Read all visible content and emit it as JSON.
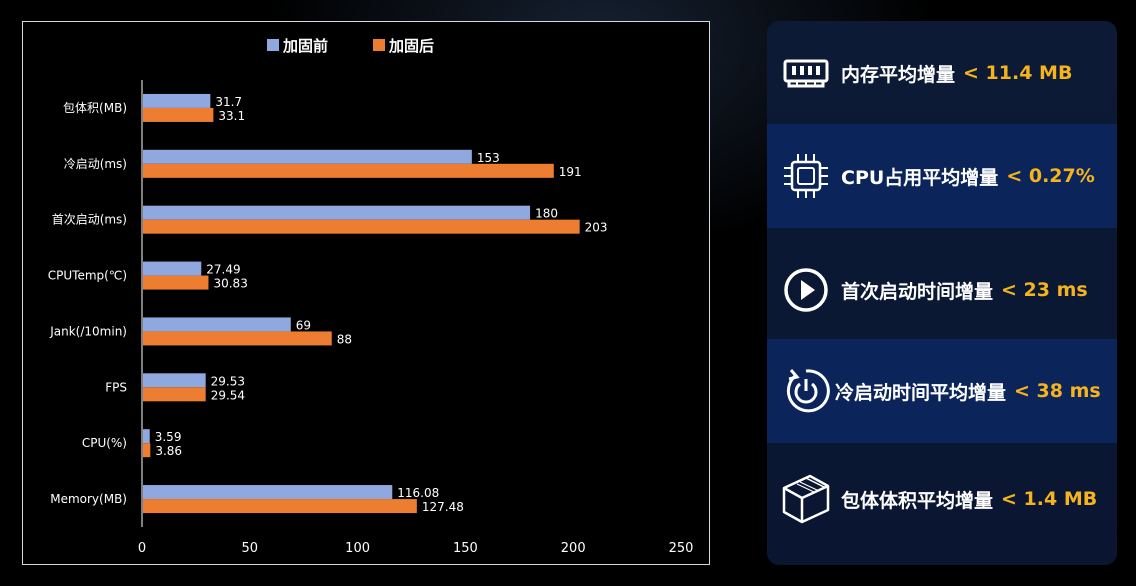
{
  "chart_data": {
    "type": "bar",
    "orientation": "horizontal",
    "categories": [
      "包体积(MB)",
      "冷启动(ms)",
      "首次启动(ms)",
      "CPUTemp(℃)",
      "Jank(/10min)",
      "FPS",
      "CPU(%)",
      "Memory(MB)"
    ],
    "series": [
      {
        "name": "加固前",
        "color": "#8fa8e0",
        "values": [
          31.7,
          153,
          180,
          27.49,
          69,
          29.53,
          3.59,
          116.08
        ]
      },
      {
        "name": "加固后",
        "color": "#ed7d31",
        "values": [
          33.1,
          191,
          203,
          30.83,
          88,
          29.54,
          3.86,
          127.48
        ]
      }
    ],
    "xlim": [
      0,
      250
    ],
    "xticks": [
      0,
      50,
      100,
      150,
      200,
      250
    ],
    "grid": false,
    "legend": "top-center"
  },
  "metrics": [
    {
      "icon": "memory-icon",
      "label": "内存平均增量",
      "value": "< 11.4 MB",
      "highlight": false
    },
    {
      "icon": "cpu-chip-icon",
      "label": "CPU占用平均增量",
      "value": "< 0.27%",
      "highlight": true
    },
    {
      "icon": "play-icon",
      "label": "首次启动时间增量",
      "value": "< 23 ms",
      "highlight": false
    },
    {
      "icon": "power-restart-icon",
      "label": "冷启动时间平均增量",
      "value": "< 38 ms",
      "highlight": true
    },
    {
      "icon": "package-box-icon",
      "label": "包体体积平均增量",
      "value": "< 1.4 MB",
      "highlight": false
    }
  ],
  "colors": {
    "accent_value": "#f5b41e",
    "panel_bg": "#0c1a36",
    "panel_highlight": "#0b2459"
  }
}
